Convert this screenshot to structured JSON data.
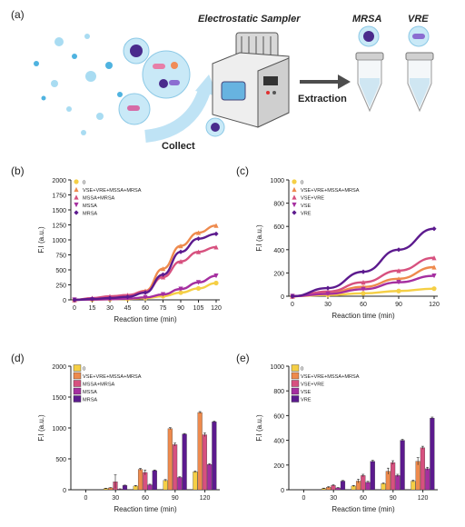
{
  "colors": {
    "c0": "#f5cf45",
    "c1": "#ee8a4d",
    "c2": "#d7517f",
    "c3": "#a52fa0",
    "c4": "#5c1a8e",
    "axis": "#222222",
    "bubble": "#a9dcf2",
    "bubble_dark": "#4fb3e0",
    "arrow": "#4d4d4d"
  },
  "panel_a": {
    "label": "(a)",
    "sampler_title": "Electrostatic Sampler",
    "collect": "Collect",
    "extraction": "Extraction",
    "tube1": "MRSA",
    "tube2": "VRE",
    "icons": [
      "bacteria-cluster-icon",
      "electrostatic-sampler-icon",
      "sample-tube-icon"
    ]
  },
  "chart_data": [
    {
      "id": "b",
      "label": "(b)",
      "type": "line",
      "xlabel": "Reaction time (min)",
      "ylabel": "F.I (a.u.)",
      "xlim": [
        0,
        120
      ],
      "ylim": [
        0,
        2000
      ],
      "xticks": [
        0,
        15,
        30,
        45,
        60,
        75,
        90,
        105,
        120
      ],
      "yticks": [
        0,
        250,
        500,
        750,
        1000,
        1250,
        1500,
        1750,
        2000
      ],
      "legend_position": "top-left",
      "series": [
        {
          "name": "0",
          "color": "c0",
          "marker": "circle",
          "x": [
            0,
            15,
            30,
            45,
            60,
            75,
            90,
            105,
            120
          ],
          "y": [
            0,
            5,
            10,
            15,
            30,
            60,
            120,
            190,
            280
          ]
        },
        {
          "name": "VSE+VRE+MSSA+MRSA",
          "color": "c1",
          "marker": "triangle",
          "x": [
            0,
            15,
            30,
            45,
            60,
            75,
            90,
            105,
            120
          ],
          "y": [
            0,
            20,
            40,
            70,
            150,
            520,
            900,
            1120,
            1240
          ]
        },
        {
          "name": "MSSA+MRSA",
          "color": "c2",
          "marker": "triangle",
          "x": [
            0,
            15,
            30,
            45,
            60,
            75,
            90,
            105,
            120
          ],
          "y": [
            0,
            30,
            60,
            80,
            140,
            380,
            640,
            800,
            880
          ]
        },
        {
          "name": "MSSA",
          "color": "c3",
          "marker": "triangle-down",
          "x": [
            0,
            15,
            30,
            45,
            60,
            75,
            90,
            105,
            120
          ],
          "y": [
            0,
            5,
            10,
            20,
            40,
            90,
            180,
            290,
            400
          ]
        },
        {
          "name": "MRSA",
          "color": "c4",
          "marker": "diamond",
          "x": [
            0,
            15,
            30,
            45,
            60,
            75,
            90,
            105,
            120
          ],
          "y": [
            0,
            15,
            30,
            50,
            120,
            420,
            800,
            1020,
            1100
          ]
        }
      ]
    },
    {
      "id": "c",
      "label": "(c)",
      "type": "line",
      "xlabel": "Reaction time (min)",
      "ylabel": "F.I (a.u.)",
      "xlim": [
        0,
        120
      ],
      "ylim": [
        0,
        1000
      ],
      "xticks": [
        0,
        30,
        60,
        90,
        120
      ],
      "yticks": [
        0,
        200,
        400,
        600,
        800,
        1000
      ],
      "legend_position": "top-left",
      "series": [
        {
          "name": "0",
          "color": "c0",
          "marker": "circle",
          "x": [
            0,
            30,
            60,
            90,
            120
          ],
          "y": [
            0,
            10,
            25,
            45,
            65
          ]
        },
        {
          "name": "VSE+VRE+MSSA+MRSA",
          "color": "c1",
          "marker": "triangle",
          "x": [
            0,
            30,
            60,
            90,
            120
          ],
          "y": [
            0,
            30,
            80,
            150,
            250
          ]
        },
        {
          "name": "VSE+VRE",
          "color": "c2",
          "marker": "triangle",
          "x": [
            0,
            30,
            60,
            90,
            120
          ],
          "y": [
            0,
            40,
            120,
            220,
            330
          ]
        },
        {
          "name": "VSE",
          "color": "c3",
          "marker": "triangle-down",
          "x": [
            0,
            30,
            60,
            90,
            120
          ],
          "y": [
            0,
            20,
            60,
            120,
            175
          ]
        },
        {
          "name": "VRE",
          "color": "c4",
          "marker": "diamond",
          "x": [
            0,
            30,
            60,
            90,
            120
          ],
          "y": [
            0,
            70,
            210,
            400,
            580
          ]
        }
      ]
    },
    {
      "id": "d",
      "label": "(d)",
      "type": "bar",
      "xlabel": "Reaction time (min)",
      "ylabel": "F.I (a.u.)",
      "categories": [
        "0",
        "30",
        "60",
        "90",
        "120"
      ],
      "ylim": [
        0,
        2000
      ],
      "yticks": [
        0,
        500,
        1000,
        1500,
        2000
      ],
      "legend_position": "top-left",
      "series": [
        {
          "name": "0",
          "color": "c0",
          "values": [
            0,
            20,
            60,
            150,
            290
          ],
          "errors": [
            0,
            5,
            10,
            15,
            15
          ]
        },
        {
          "name": "VSE+VRE+MSSA+MRSA",
          "color": "c1",
          "values": [
            0,
            30,
            330,
            990,
            1250
          ],
          "errors": [
            0,
            5,
            15,
            15,
            15
          ]
        },
        {
          "name": "MSSA+MRSA",
          "color": "c2",
          "values": [
            0,
            130,
            280,
            730,
            890
          ],
          "errors": [
            0,
            110,
            40,
            25,
            30
          ]
        },
        {
          "name": "MSSA",
          "color": "c3",
          "values": [
            0,
            10,
            80,
            200,
            410
          ],
          "errors": [
            0,
            5,
            10,
            10,
            10
          ]
        },
        {
          "name": "MRSA",
          "color": "c4",
          "values": [
            0,
            70,
            310,
            900,
            1100
          ],
          "errors": [
            0,
            5,
            10,
            10,
            10
          ]
        }
      ]
    },
    {
      "id": "e",
      "label": "(e)",
      "type": "bar",
      "xlabel": "Reaction time (min)",
      "ylabel": "F.I (a.u.)",
      "categories": [
        "0",
        "30",
        "60",
        "90",
        "120"
      ],
      "ylim": [
        0,
        1000
      ],
      "yticks": [
        0,
        200,
        400,
        600,
        800,
        1000
      ],
      "legend_position": "top-left",
      "series": [
        {
          "name": "0",
          "color": "c0",
          "values": [
            0,
            10,
            30,
            50,
            70
          ],
          "errors": [
            0,
            3,
            5,
            5,
            8
          ]
        },
        {
          "name": "VSE+VRE+MSSA+MRSA",
          "color": "c1",
          "values": [
            0,
            20,
            70,
            150,
            230
          ],
          "errors": [
            0,
            5,
            15,
            25,
            30
          ]
        },
        {
          "name": "VSE+VRE",
          "color": "c2",
          "values": [
            0,
            35,
            115,
            220,
            340
          ],
          "errors": [
            0,
            5,
            10,
            15,
            12
          ]
        },
        {
          "name": "VSE",
          "color": "c3",
          "values": [
            0,
            15,
            60,
            115,
            170
          ],
          "errors": [
            0,
            3,
            8,
            10,
            12
          ]
        },
        {
          "name": "VRE",
          "color": "c4",
          "values": [
            0,
            70,
            230,
            400,
            580
          ],
          "errors": [
            0,
            5,
            8,
            8,
            8
          ]
        }
      ]
    }
  ]
}
